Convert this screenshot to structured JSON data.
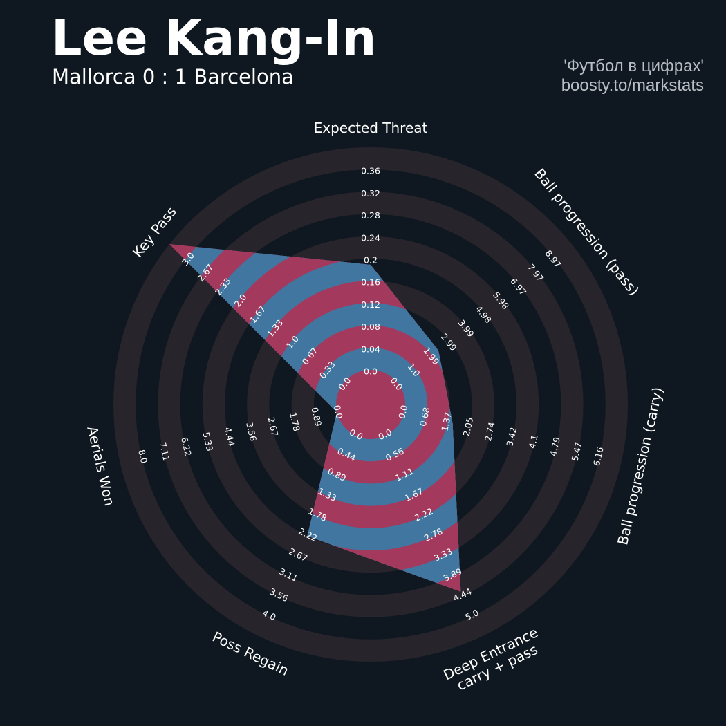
{
  "header": {
    "title": "Lee Kang-In",
    "subtitle": "Mallorca 0 : 1 Barcelona",
    "credit_line1": "'Футбол в цифрах'",
    "credit_line2": "boosty.to/markstats"
  },
  "colors": {
    "background": "#0f1820",
    "ring_dark": "#0f1820",
    "ring_light": "#28242b",
    "inside_a": "#a33a5e",
    "inside_b": "#4076a0"
  },
  "chart_data": {
    "type": "radar",
    "title": "Lee Kang-In",
    "subtitle": "Mallorca 0 : 1 Barcelona",
    "params": [
      {
        "label": "Expected Threat",
        "lines": [
          "Expected Threat"
        ],
        "value": 0.17,
        "range": [
          0,
          0.36
        ],
        "ticks": [
          "0.0",
          "0.04",
          "0.08",
          "0.12",
          "0.16",
          "0.2",
          "0.24",
          "0.28",
          "0.32",
          "0.36"
        ]
      },
      {
        "label": "Ball progression (pass)",
        "lines": [
          "Ball progression (pass)"
        ],
        "value": 2.1,
        "range": [
          0,
          8.97
        ],
        "ticks": [
          "0.0",
          "1.0",
          "1.99",
          "2.99",
          "3.99",
          "4.98",
          "5.98",
          "6.97",
          "7.97",
          "8.97"
        ]
      },
      {
        "label": "Ball progression (carry)",
        "lines": [
          "Ball progression (carry)"
        ],
        "value": 1.37,
        "range": [
          0,
          6.16
        ],
        "ticks": [
          "0.0",
          "0.68",
          "1.37",
          "2.05",
          "2.74",
          "3.42",
          "4.1",
          "4.79",
          "5.47",
          "6.16"
        ]
      },
      {
        "label": "Deep Entrance carry + pass",
        "lines": [
          "Deep Entrance",
          "carry + pass"
        ],
        "value": 3.89,
        "range": [
          0,
          5.0
        ],
        "ticks": [
          "0.0",
          "0.56",
          "1.11",
          "1.67",
          "2.22",
          "2.78",
          "3.33",
          "3.89",
          "4.44",
          "5.0"
        ]
      },
      {
        "label": "Poss Regain",
        "lines": [
          "Poss Regain"
        ],
        "value": 2.0,
        "range": [
          0,
          4.0
        ],
        "ticks": [
          "0.0",
          "0.44",
          "0.89",
          "1.33",
          "1.78",
          "2.22",
          "2.67",
          "3.11",
          "3.56",
          "4.0"
        ]
      },
      {
        "label": "Aerials Won",
        "lines": [
          "Aerials Won"
        ],
        "value": 0.0,
        "range": [
          0,
          8.0
        ],
        "ticks": [
          "0.0",
          "0.89",
          "1.78",
          "2.67",
          "3.56",
          "4.44",
          "5.33",
          "6.22",
          "7.11",
          "8.0"
        ]
      },
      {
        "label": "Key Pass",
        "lines": [
          "Key Pass"
        ],
        "value": 3.0,
        "range": [
          0,
          3.0
        ],
        "ticks": [
          "0.0",
          "0.33",
          "0.67",
          "1.0",
          "1.33",
          "1.67",
          "2.0",
          "2.33",
          "2.67",
          "3.0"
        ]
      }
    ],
    "rings": 10
  }
}
